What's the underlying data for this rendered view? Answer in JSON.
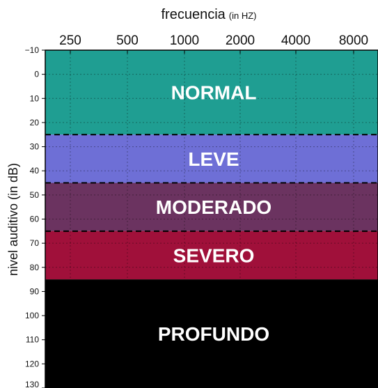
{
  "chart_data": {
    "type": "heatmap",
    "title": "",
    "xlabel": "frecuencia",
    "xlabel_unit": "(in HZ)",
    "ylabel": "nivel auditivo (in dB)",
    "x_ticks": [
      "250",
      "500",
      "1000",
      "2000",
      "4000",
      "8000"
    ],
    "y_ticks": [
      -10,
      0,
      10,
      20,
      30,
      40,
      50,
      60,
      70,
      80,
      90,
      100,
      110,
      120,
      130
    ],
    "ylim": [
      -10,
      130
    ],
    "y_inverted": true,
    "grid": true,
    "bands": [
      {
        "label": "NORMAL",
        "from_db": -10,
        "to_db": 25,
        "color": "#1f9e92"
      },
      {
        "label": "LEVE",
        "from_db": 25,
        "to_db": 45,
        "color": "#6e6fd6"
      },
      {
        "label": "MODERADO",
        "from_db": 45,
        "to_db": 65,
        "color": "#6b3360"
      },
      {
        "label": "SEVERO",
        "from_db": 65,
        "to_db": 85,
        "color": "#a0103a"
      },
      {
        "label": "PROFUNDO",
        "from_db": 85,
        "to_db": 130,
        "color": "#000000"
      }
    ],
    "boundary_lines_db": [
      25,
      45,
      65
    ]
  }
}
